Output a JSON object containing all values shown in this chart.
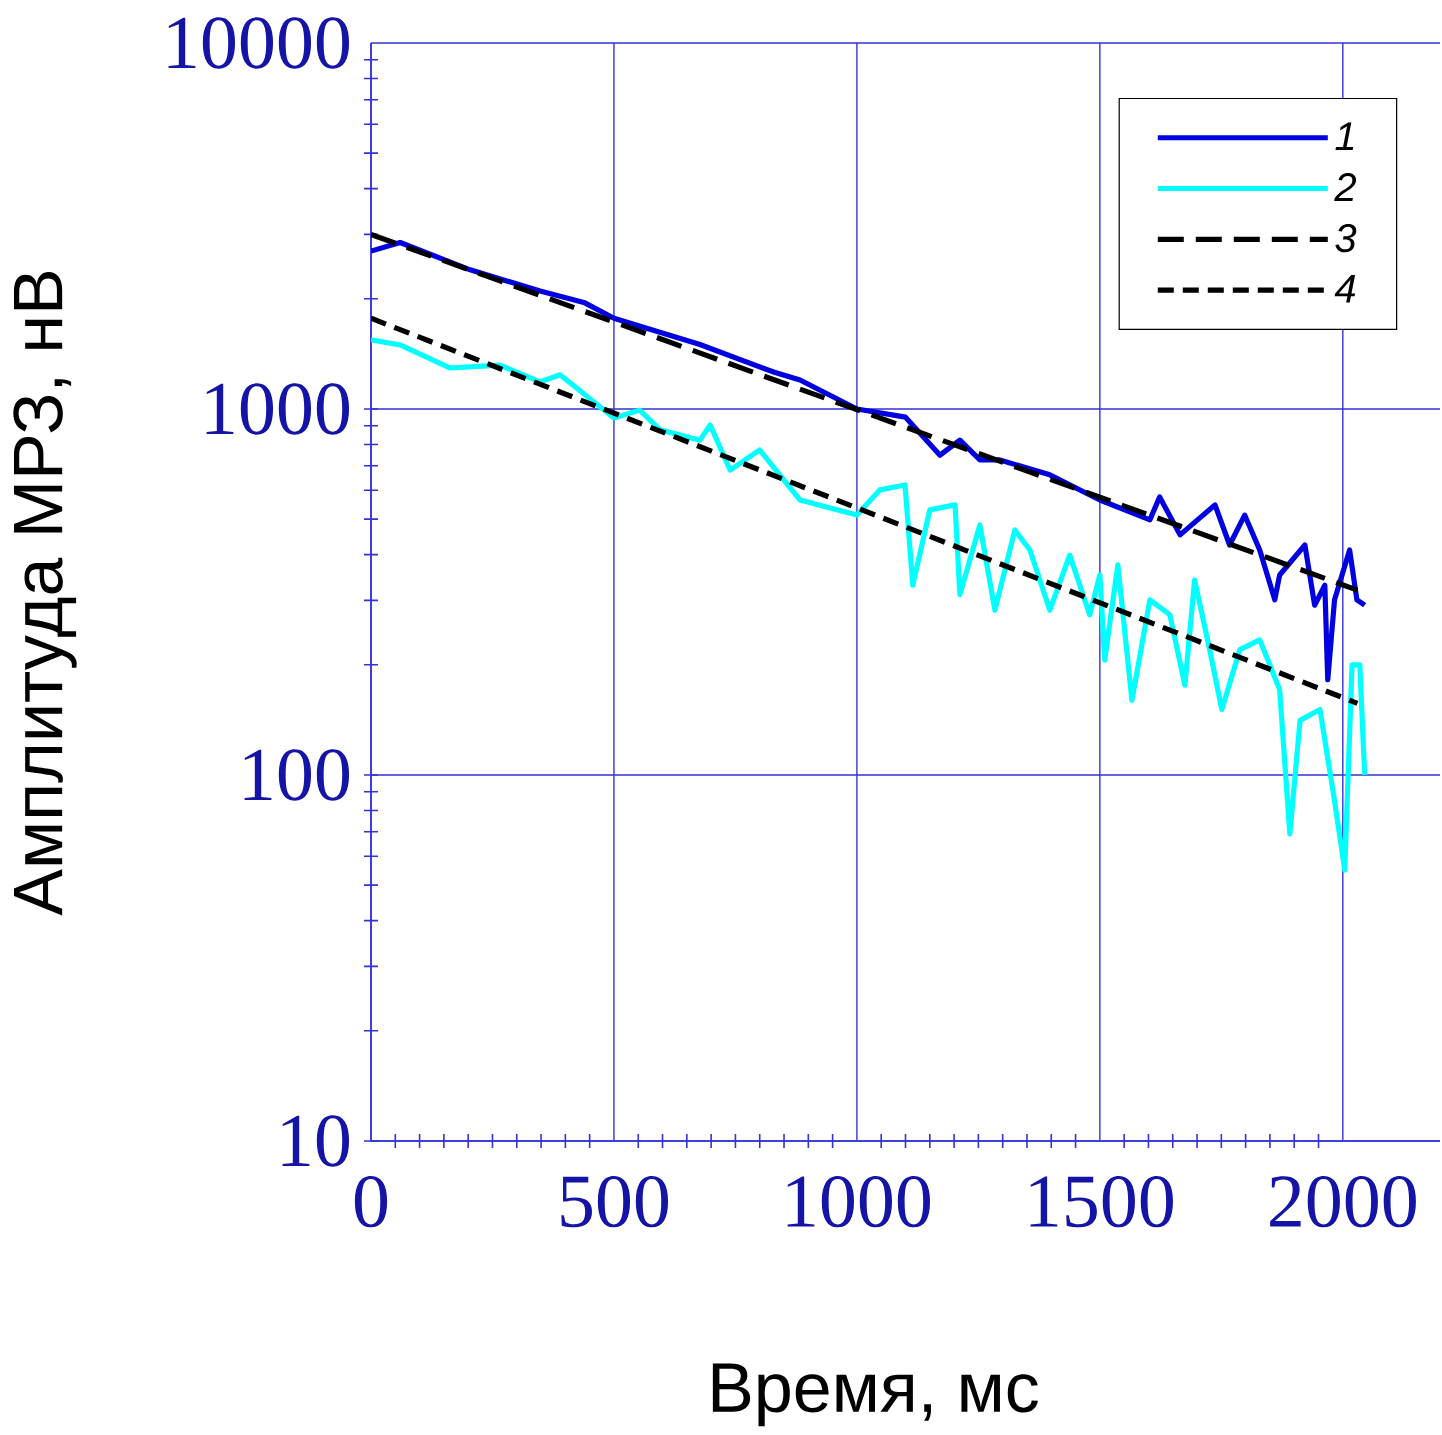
{
  "chart_data": {
    "type": "line",
    "xlabel": "Время, мс",
    "ylabel": "Амплитуда МРЗ, нВ",
    "log": "y",
    "grid": true,
    "legend": "top right",
    "xlim": [
      0,
      2200
    ],
    "ylim": [
      10,
      10000
    ],
    "xticks": [
      0,
      500,
      1000,
      1500,
      2000
    ],
    "yticks": [
      10,
      100,
      1000,
      10000
    ],
    "series": [
      {
        "name": "1",
        "color": "#0000e0",
        "line_style": "solid",
        "x": [
          0,
          60,
          204,
          348,
          440,
          500,
          677,
          830,
          883,
          1000,
          1100,
          1171,
          1212,
          1253,
          1294,
          1397,
          1500,
          1603,
          1623,
          1665,
          1737,
          1767,
          1798,
          1829,
          1860,
          1870,
          1922,
          1942,
          1963,
          1969,
          1983,
          2014,
          2029,
          2045
        ],
        "values": [
          2700,
          2850,
          2400,
          2100,
          1950,
          1770,
          1500,
          1260,
          1200,
          1000,
          950,
          748,
          822,
          726,
          726,
          661,
          564,
          498,
          575,
          453,
          547,
          425,
          513,
          412,
          301,
          352,
          425,
          291,
          330,
          182,
          301,
          412,
          301,
          291
        ]
      },
      {
        "name": "2",
        "color": "#00ffff",
        "line_style": "solid",
        "x": [
          0,
          60,
          163,
          265,
          348,
          389,
          500,
          553,
          595,
          677,
          698,
          739,
          800,
          883,
          1000,
          1047,
          1099,
          1115,
          1150,
          1202,
          1212,
          1253,
          1284,
          1325,
          1356,
          1397,
          1438,
          1479,
          1500,
          1510,
          1537,
          1566,
          1603,
          1644,
          1675,
          1695,
          1726,
          1751,
          1788,
          1829,
          1870,
          1891,
          1912,
          1953,
          1983,
          2004,
          2019,
          2035,
          2045
        ],
        "values": [
          1545,
          1496,
          1294,
          1318,
          1186,
          1240,
          945,
          993,
          877,
          822,
          904,
          681,
          773,
          564,
          513,
          601,
          620,
          330,
          530,
          547,
          311,
          482,
          282,
          467,
          412,
          282,
          399,
          274,
          352,
          206,
          375,
          160,
          301,
          274,
          176,
          341,
          220,
          151,
          220,
          234,
          171,
          69,
          141,
          151,
          85,
          55,
          200,
          200,
          100
        ]
      },
      {
        "name": "3",
        "color": "#000000",
        "line_style": "dashed",
        "x": [
          0,
          2030
        ],
        "values": [
          3000,
          320
        ]
      },
      {
        "name": "4",
        "color": "#000000",
        "line_style": "dotted",
        "x": [
          0,
          2030
        ],
        "values": [
          1770,
          157
        ]
      }
    ]
  }
}
